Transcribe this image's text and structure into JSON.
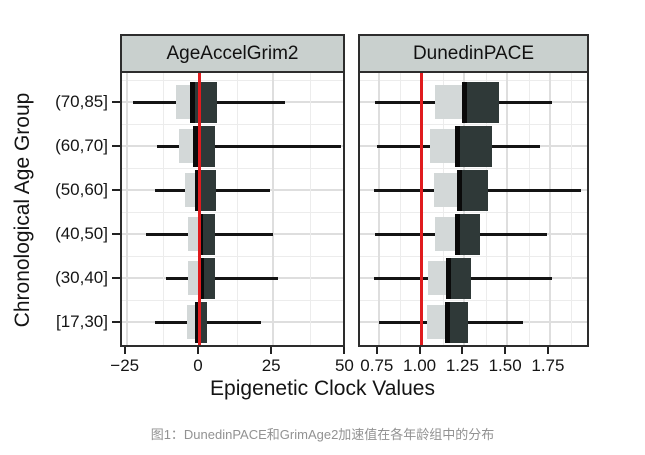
{
  "figure": {
    "y_title": "Chronological Age Group",
    "x_title": "Epigenetic Clock Values",
    "caption": "图1：DunedinPACE和GrimAge2加速值在各年龄组中的分布"
  },
  "chart_data": {
    "type": "boxplot",
    "orientation": "horizontal",
    "grid": true,
    "legend": "none",
    "categories": [
      "(70,85]",
      "(60,70]",
      "(50,60]",
      "(40,50]",
      "(30,40]",
      "[17,30]"
    ],
    "colors": {
      "box_light": "#d3d8d8",
      "box_dark": "#2f3938",
      "reference_line": "#e01b1e",
      "strip_fill": "#c9d0ce",
      "grid_major": "#dedede",
      "grid_minor": "#ececec"
    },
    "facets": [
      {
        "label": "AgeAccelGrim2",
        "xlim": [
          -26.6,
          50.2
        ],
        "ticks": [
          -25,
          0,
          25,
          50
        ],
        "tick_labels": [
          "−25",
          "0",
          "25",
          "50"
        ],
        "minor_ticks": [
          -12.5,
          12.5,
          37.5
        ],
        "ref_line": 0,
        "boxes": [
          {
            "group": "(70,85]",
            "whisker_lo": -23,
            "q1": -8,
            "median": -2.5,
            "q3": 6,
            "whisker_hi": 29
          },
          {
            "group": "(60,70]",
            "whisker_lo": -14.5,
            "q1": -7,
            "median": -1.5,
            "q3": 5,
            "whisker_hi": 48
          },
          {
            "group": "(50,60]",
            "whisker_lo": -15.5,
            "q1": -5,
            "median": -1,
            "q3": 5.5,
            "whisker_hi": 24
          },
          {
            "group": "(40,50]",
            "whisker_lo": -18.5,
            "q1": -4,
            "median": 0.3,
            "q3": 5,
            "whisker_hi": 25
          },
          {
            "group": "(30,40]",
            "whisker_lo": -11.5,
            "q1": -4,
            "median": 0.7,
            "q3": 5,
            "whisker_hi": 26.5
          },
          {
            "group": "[17,30]",
            "whisker_lo": -15.5,
            "q1": -4.5,
            "median": -0.8,
            "q3": 2.5,
            "whisker_hi": 21
          }
        ]
      },
      {
        "label": "DunedinPACE",
        "xlim": [
          0.64,
          1.99
        ],
        "ticks": [
          0.75,
          1.0,
          1.25,
          1.5,
          1.75
        ],
        "tick_labels": [
          "0.75",
          "1.00",
          "1.25",
          "1.50",
          "1.75"
        ],
        "minor_ticks": [
          0.875,
          1.125,
          1.375,
          1.625,
          1.875
        ],
        "ref_line": 1.0,
        "boxes": [
          {
            "group": "(70,85]",
            "whisker_lo": 0.73,
            "q1": 1.08,
            "median": 1.25,
            "q3": 1.45,
            "whisker_hi": 1.76
          },
          {
            "group": "(60,70]",
            "whisker_lo": 0.74,
            "q1": 1.05,
            "median": 1.21,
            "q3": 1.41,
            "whisker_hi": 1.69
          },
          {
            "group": "(50,60]",
            "whisker_lo": 0.72,
            "q1": 1.07,
            "median": 1.22,
            "q3": 1.39,
            "whisker_hi": 1.93
          },
          {
            "group": "(40,50]",
            "whisker_lo": 0.73,
            "q1": 1.08,
            "median": 1.21,
            "q3": 1.34,
            "whisker_hi": 1.73
          },
          {
            "group": "(30,40]",
            "whisker_lo": 0.72,
            "q1": 1.04,
            "median": 1.16,
            "q3": 1.29,
            "whisker_hi": 1.76
          },
          {
            "group": "[17,30]",
            "whisker_lo": 0.75,
            "q1": 1.03,
            "median": 1.15,
            "q3": 1.27,
            "whisker_hi": 1.59
          }
        ]
      }
    ]
  }
}
